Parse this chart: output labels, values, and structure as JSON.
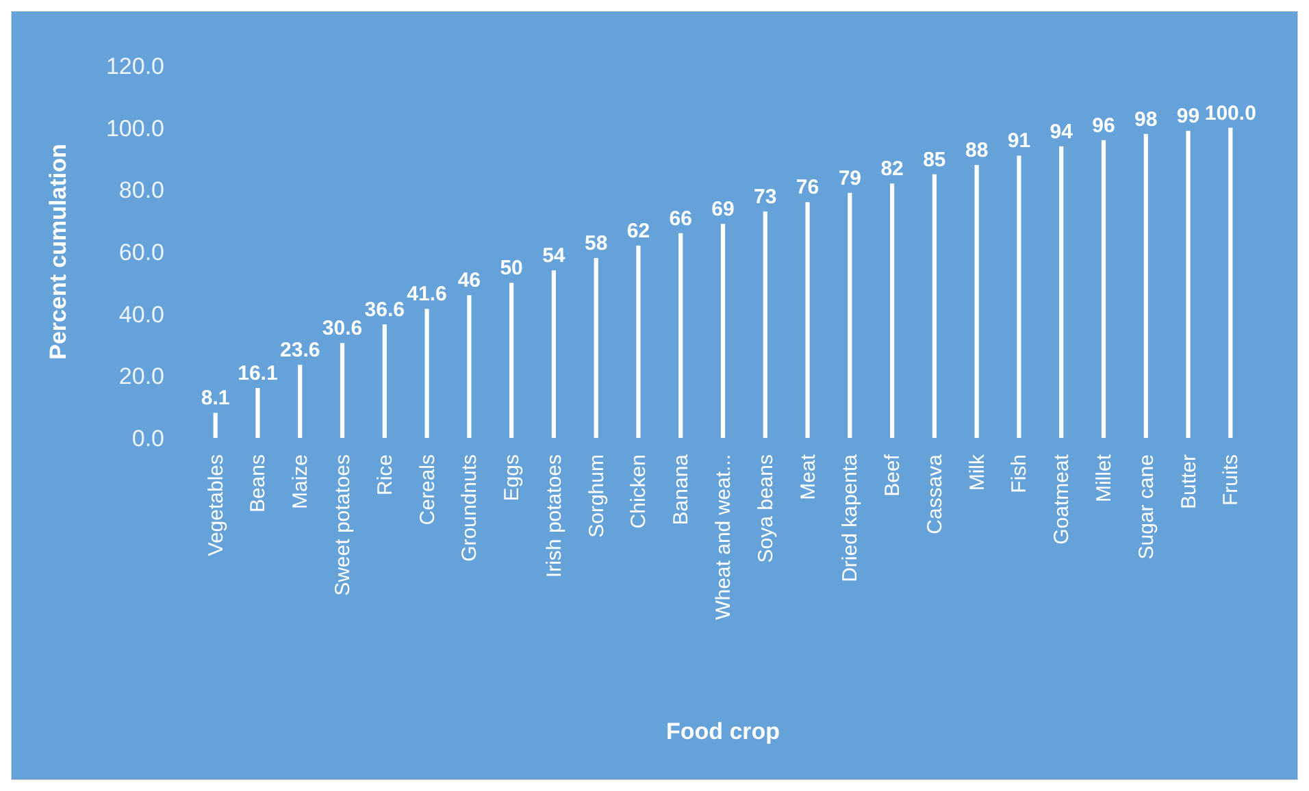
{
  "chart_data": {
    "type": "bar",
    "xlabel": "Food crop",
    "ylabel": "Percent cumulation",
    "categories": [
      "Vegetables",
      "Beans",
      "Maize",
      "Sweet potatoes",
      "Rice",
      "Cereals",
      "Groundnuts",
      "Eggs",
      "Irish potatoes",
      "Sorghum",
      "Chicken",
      "Banana",
      "Wheat and weat...",
      "Soya beans",
      "Meat",
      "Dried kapenta",
      "Beef",
      "Cassava",
      "Milk",
      "Fish",
      "Goatmeat",
      "Millet",
      "Sugar cane",
      "Butter",
      "Fruits"
    ],
    "values": [
      8.1,
      16.1,
      23.6,
      30.6,
      36.6,
      41.6,
      46,
      50,
      54,
      58,
      62,
      66,
      69,
      73,
      76,
      79,
      82,
      85,
      88,
      91,
      94,
      96,
      98,
      99,
      100.0
    ],
    "value_labels": [
      "8.1",
      "16.1",
      "23.6",
      "30.6",
      "36.6",
      "41.6",
      "46",
      "50",
      "54",
      "58",
      "62",
      "66",
      "69",
      "73",
      "76",
      "79",
      "82",
      "85",
      "88",
      "91",
      "94",
      "96",
      "98",
      "99",
      "100.0"
    ],
    "color": "#ffffff",
    "ylim": [
      0,
      120
    ],
    "yticks": [
      {
        "value": 0,
        "label": "0.0"
      },
      {
        "value": 20,
        "label": "20.0"
      },
      {
        "value": 40,
        "label": "40.0"
      },
      {
        "value": 60,
        "label": "60.0"
      },
      {
        "value": 80,
        "label": "80.0"
      },
      {
        "value": 100,
        "label": "100.0"
      },
      {
        "value": 120,
        "label": "120.0"
      }
    ],
    "grid": false
  }
}
